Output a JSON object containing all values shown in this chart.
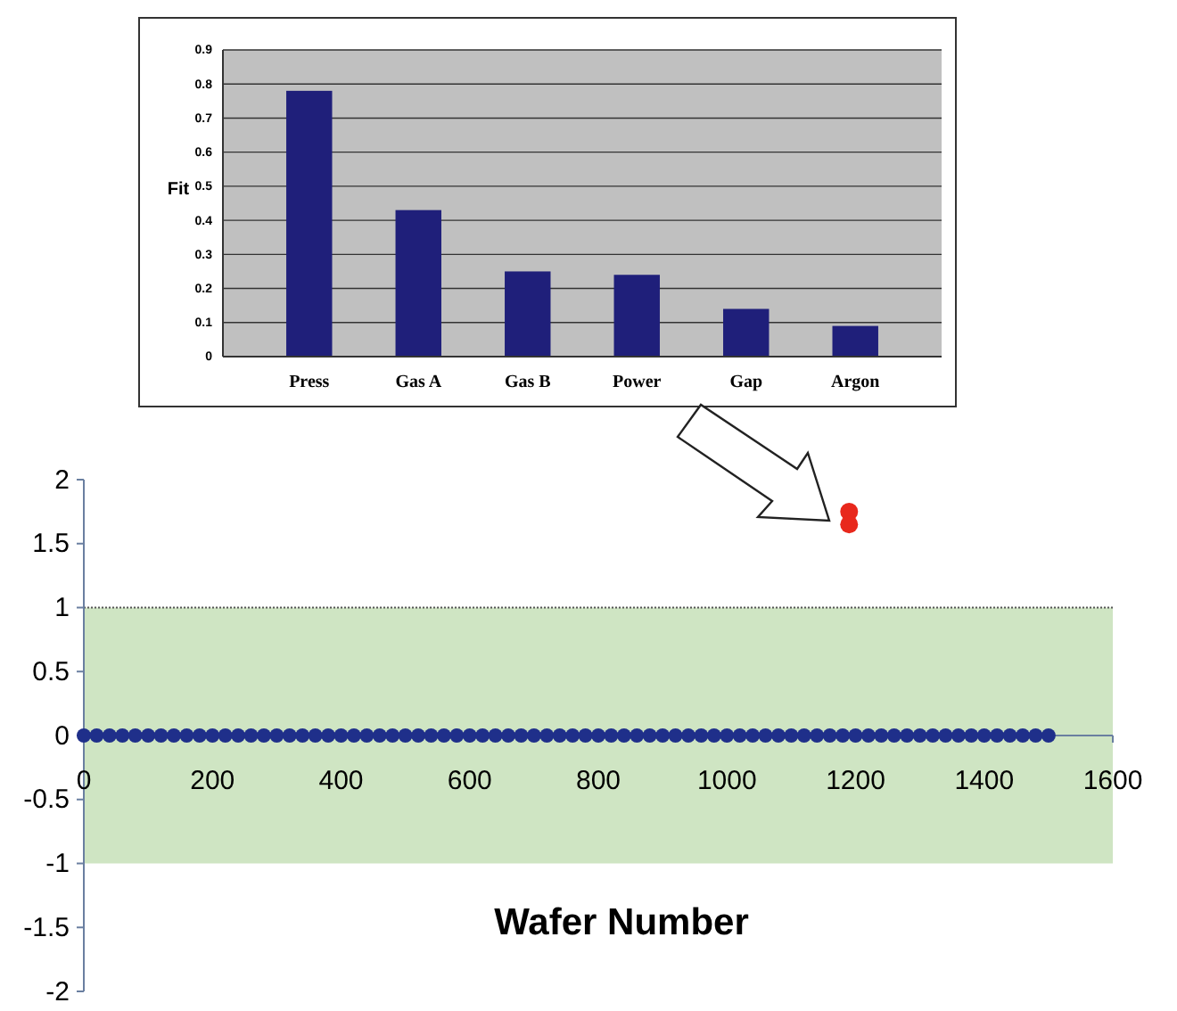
{
  "chart_data": [
    {
      "type": "bar",
      "ylabel": "Fit",
      "categories": [
        "Press",
        "Gas A",
        "Gas B",
        "Power",
        "Gap",
        "Argon"
      ],
      "values": [
        0.78,
        0.43,
        0.25,
        0.24,
        0.14,
        0.09
      ],
      "color": "#1f1f7a",
      "ylim": [
        0,
        0.9
      ],
      "yticks": [
        0,
        0.1,
        0.2,
        0.3,
        0.4,
        0.5,
        0.6,
        0.7,
        0.8,
        0.9
      ],
      "grid": "y"
    },
    {
      "type": "scatter",
      "xlabel": "Wafer Number",
      "xlim": [
        0,
        1600
      ],
      "xticks": [
        0,
        200,
        400,
        600,
        800,
        1000,
        1200,
        1400,
        1600
      ],
      "ylim": [
        -2,
        2
      ],
      "yticks": [
        -2,
        -1.5,
        -1,
        -0.5,
        0,
        0.5,
        1,
        1.5,
        2
      ],
      "marker": "circle",
      "bands": [
        {
          "axis": "y",
          "from": -1,
          "to": 1,
          "color": "#cfe5c3"
        }
      ],
      "series": [
        {
          "color": "#1f2f8a",
          "x": [
            0,
            20,
            40,
            60,
            80,
            100,
            120,
            140,
            160,
            180,
            200,
            220,
            240,
            260,
            280,
            300,
            320,
            340,
            360,
            380,
            400,
            420,
            440,
            460,
            480,
            500,
            520,
            540,
            560,
            580,
            600,
            620,
            640,
            660,
            680,
            700,
            720,
            740,
            760,
            780,
            800,
            820,
            840,
            860,
            880,
            900,
            920,
            940,
            960,
            980,
            1000,
            1020,
            1040,
            1060,
            1080,
            1100,
            1120,
            1140,
            1160,
            1180,
            1200,
            1220,
            1240,
            1260,
            1280,
            1300,
            1320,
            1340,
            1360,
            1380,
            1400,
            1420,
            1440,
            1460,
            1480,
            1500
          ],
          "values": [
            0,
            0,
            0,
            0,
            0,
            0,
            0,
            0,
            0,
            0,
            0,
            0,
            0,
            0,
            0,
            0,
            0,
            0,
            0,
            0,
            0,
            0,
            0,
            0,
            0,
            0,
            0,
            0,
            0,
            0,
            0,
            0,
            0,
            0,
            0,
            0,
            0,
            0,
            0,
            0,
            0,
            0,
            0,
            0,
            0,
            0,
            0,
            0,
            0,
            0,
            0,
            0,
            0,
            0,
            0,
            0,
            0,
            0,
            0,
            0,
            0,
            0,
            0,
            0,
            0,
            0,
            0,
            0,
            0,
            0,
            0,
            0,
            0,
            0,
            0,
            0
          ]
        },
        {
          "color": "#e8281c",
          "x": [
            1190,
            1190
          ],
          "values": [
            1.75,
            1.65
          ]
        }
      ]
    }
  ]
}
